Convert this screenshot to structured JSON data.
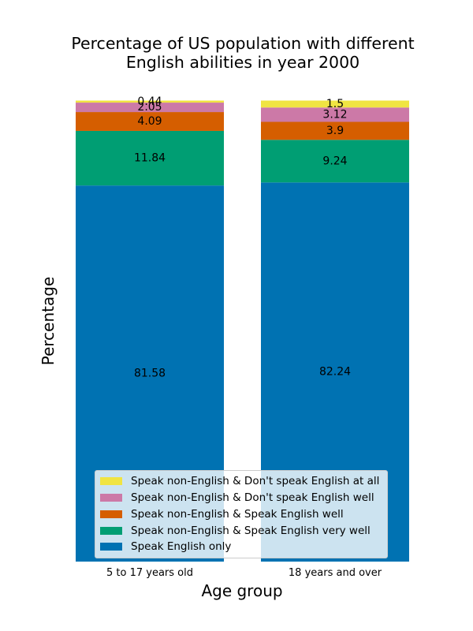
{
  "chart_data": {
    "type": "bar",
    "stacked": true,
    "title_lines": [
      "Percentage of US population with different",
      "English abilities in year 2000"
    ],
    "xlabel": "Age group",
    "ylabel": "Percentage",
    "categories": [
      "5 to 17 years old",
      "18 years and over"
    ],
    "series": [
      {
        "name": "Speak English only",
        "values": [
          81.58,
          82.24
        ],
        "color": "#0072b2"
      },
      {
        "name": "Speak non-English & Speak English very well",
        "values": [
          11.84,
          9.24
        ],
        "color": "#009e73"
      },
      {
        "name": "Speak non-English & Speak English well",
        "values": [
          4.09,
          3.9
        ],
        "color": "#d55e00"
      },
      {
        "name": "Speak non-English & Don't speak English well",
        "values": [
          2.05,
          3.12
        ],
        "color": "#cc79a7"
      },
      {
        "name": "Speak non-English & Don't speak English at all",
        "values": [
          0.44,
          1.5
        ],
        "color": "#f0e442"
      }
    ],
    "data_labels": [
      [
        "81.58",
        "82.24"
      ],
      [
        "11.84",
        "9.24"
      ],
      [
        "4.09",
        "3.9"
      ],
      [
        "2.05",
        "3.12"
      ],
      [
        "0.44",
        "1.5"
      ]
    ],
    "ylim": [
      0,
      100
    ],
    "legend_position": "lower-center",
    "grid": false
  }
}
